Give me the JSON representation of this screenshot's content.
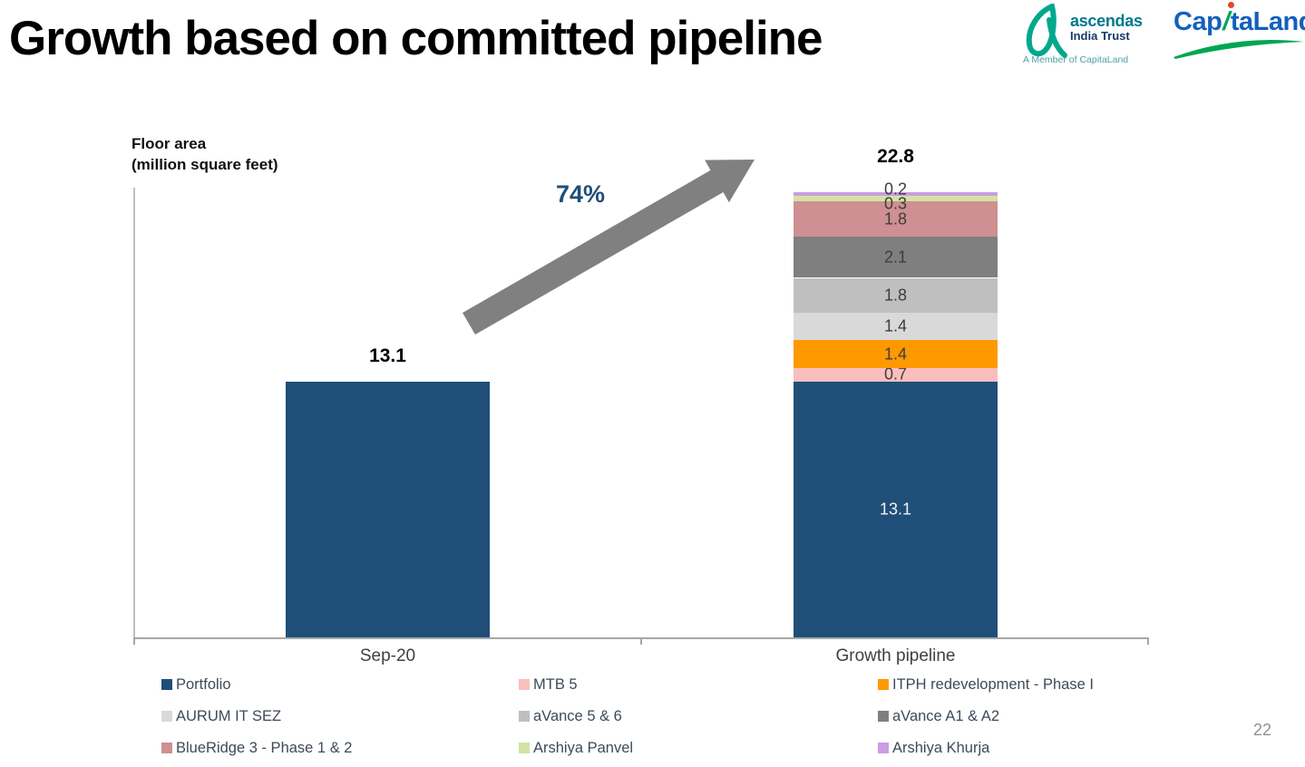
{
  "page": {
    "title": "Growth based on committed pipeline",
    "page_number": "22"
  },
  "logos": {
    "ascendas": {
      "name": "ascendas",
      "sub": "India Trust",
      "tagline": "A Member of CapitaLand",
      "mark_color": "#00A88E",
      "name_color": "#00788C",
      "sub_color": "#16396B"
    },
    "capitaland": {
      "part1": "Cap",
      "part2": "taLand",
      "full_name": "CapitaLand",
      "text_color": "#1360BE",
      "swoosh_color": "#00A651",
      "dot_color": "#E8432E"
    }
  },
  "chart_labels": {
    "floor_area": [
      "Floor area",
      "(million square feet)"
    ]
  },
  "chart_data": {
    "type": "bar",
    "stacked": true,
    "title": "",
    "ylabel": "Floor area (million square feet)",
    "categories": [
      "Sep-20",
      "Growth pipeline"
    ],
    "bar_totals": [
      13.1,
      22.8
    ],
    "annotation": {
      "text": "74%",
      "color": "#1F4E79",
      "arrow_color": "#808080"
    },
    "grid": false,
    "legend_position": "bottom",
    "series": [
      {
        "name": "Portfolio",
        "color": "#1F4E79",
        "values": [
          13.1,
          13.1
        ],
        "label_color": "#F2F2F2"
      },
      {
        "name": "MTB 5",
        "color": "#FABFBD",
        "values": [
          0,
          0.7
        ]
      },
      {
        "name": "ITPH redevelopment - Phase I",
        "color": "#FF9900",
        "values": [
          0,
          1.4
        ]
      },
      {
        "name": "AURUM IT SEZ",
        "color": "#D9D9D9",
        "values": [
          0,
          1.4
        ]
      },
      {
        "name": "aVance 5 & 6",
        "color": "#BFBFBF",
        "values": [
          0,
          1.8
        ]
      },
      {
        "name": "aVance A1 & A2",
        "color": "#7F7F7F",
        "values": [
          0,
          2.1
        ]
      },
      {
        "name": "BlueRidge 3 - Phase 1 & 2",
        "color": "#CE9092",
        "values": [
          0,
          1.8
        ]
      },
      {
        "name": "Arshiya Panvel",
        "color": "#D2E3A4",
        "values": [
          0,
          0.3
        ]
      },
      {
        "name": "Arshiya Khurja",
        "color": "#CB9DE1",
        "values": [
          0,
          0.2
        ]
      }
    ]
  }
}
